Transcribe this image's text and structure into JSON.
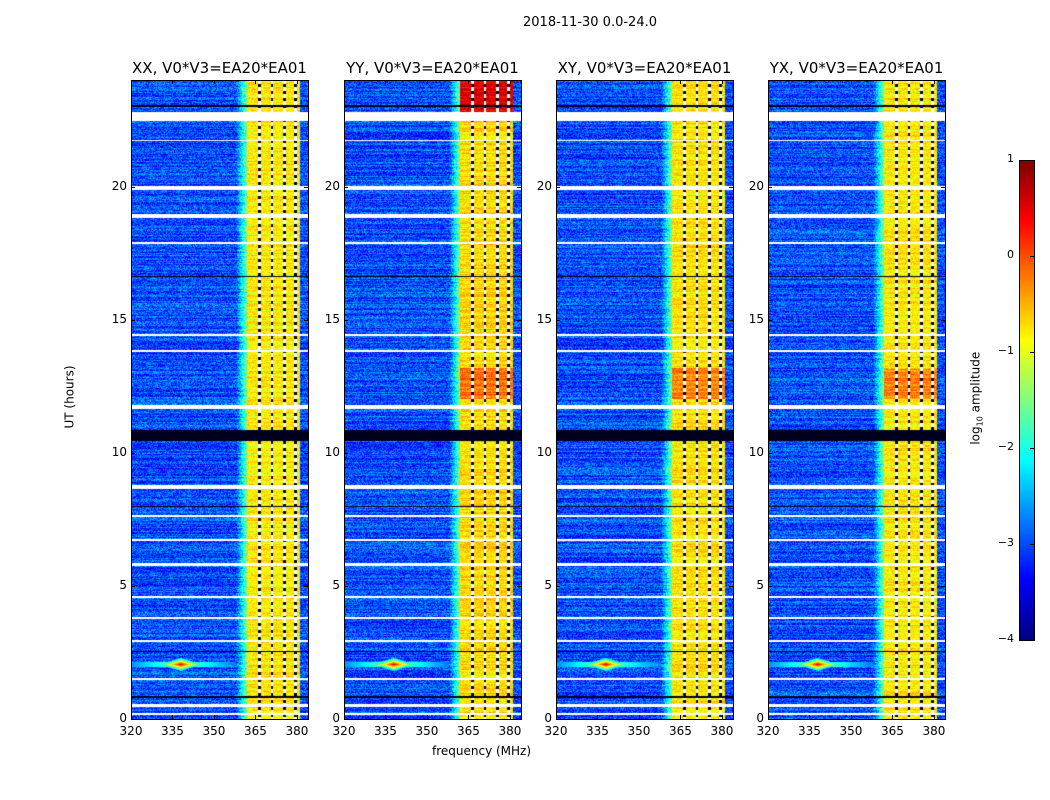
{
  "chart_data": {
    "type": "heatmap",
    "title": "2018-11-30 0.0-24.0",
    "xlabel": "frequency (MHz)",
    "ylabel": "UT (hours)",
    "xlim": [
      320,
      384
    ],
    "ylim": [
      0,
      24
    ],
    "xticks": [
      "320",
      "335",
      "350",
      "365",
      "380"
    ],
    "xtick_values": [
      320,
      335,
      350,
      365,
      380
    ],
    "yticks": [
      "0",
      "5",
      "10",
      "15",
      "20"
    ],
    "ytick_values": [
      0,
      5,
      10,
      15,
      20
    ],
    "colormap": "jet",
    "colorbar": {
      "label_main": "log",
      "label_sub": "10",
      "label_rest": " amplitude",
      "range": [
        -4,
        1
      ],
      "ticks": [
        "1",
        "0",
        "−1",
        "−2",
        "−3",
        "−4"
      ],
      "tick_values": [
        1,
        0,
        -1,
        -2,
        -3,
        -4
      ]
    },
    "panels": [
      {
        "title": "XX, V0*V3=EA20*EA01",
        "band_level": -0.8
      },
      {
        "title": "YY, V0*V3=EA20*EA01",
        "band_level": -0.7
      },
      {
        "title": "XY, V0*V3=EA20*EA01",
        "band_level": -0.75
      },
      {
        "title": "YX, V0*V3=EA20*EA01",
        "band_level": -0.8
      }
    ],
    "background_level": -3.0,
    "rfi_band_mhz": [
      362,
      381
    ],
    "band_gaps_mhz": [
      366.5,
      371,
      375.5,
      379.5
    ],
    "carrier": {
      "freq_mhz": 338,
      "time_h": 2.05,
      "level": 0.5
    },
    "flagged_hours": [
      [
        22.45,
        22.8
      ],
      [
        19.85,
        20.0
      ],
      [
        18.8,
        18.95
      ],
      [
        11.65,
        11.8
      ],
      [
        8.65,
        8.8
      ],
      [
        5.75,
        5.85
      ],
      [
        4.55,
        4.62
      ],
      [
        3.75,
        3.82
      ],
      [
        1.45,
        1.55
      ],
      [
        0.45,
        0.55
      ],
      [
        0.15,
        0.22
      ],
      [
        21.7,
        21.75
      ],
      [
        17.85,
        17.9
      ],
      [
        14.4,
        14.45
      ],
      [
        13.8,
        13.85
      ],
      [
        7.6,
        7.65
      ],
      [
        6.7,
        6.75
      ],
      [
        2.9,
        2.95
      ]
    ],
    "dark_hours": [
      [
        10.45,
        10.85
      ],
      [
        23.0,
        23.05
      ],
      [
        16.6,
        16.65
      ],
      [
        7.95,
        8.0
      ],
      [
        2.5,
        2.55
      ],
      [
        0.8,
        0.85
      ]
    ]
  }
}
